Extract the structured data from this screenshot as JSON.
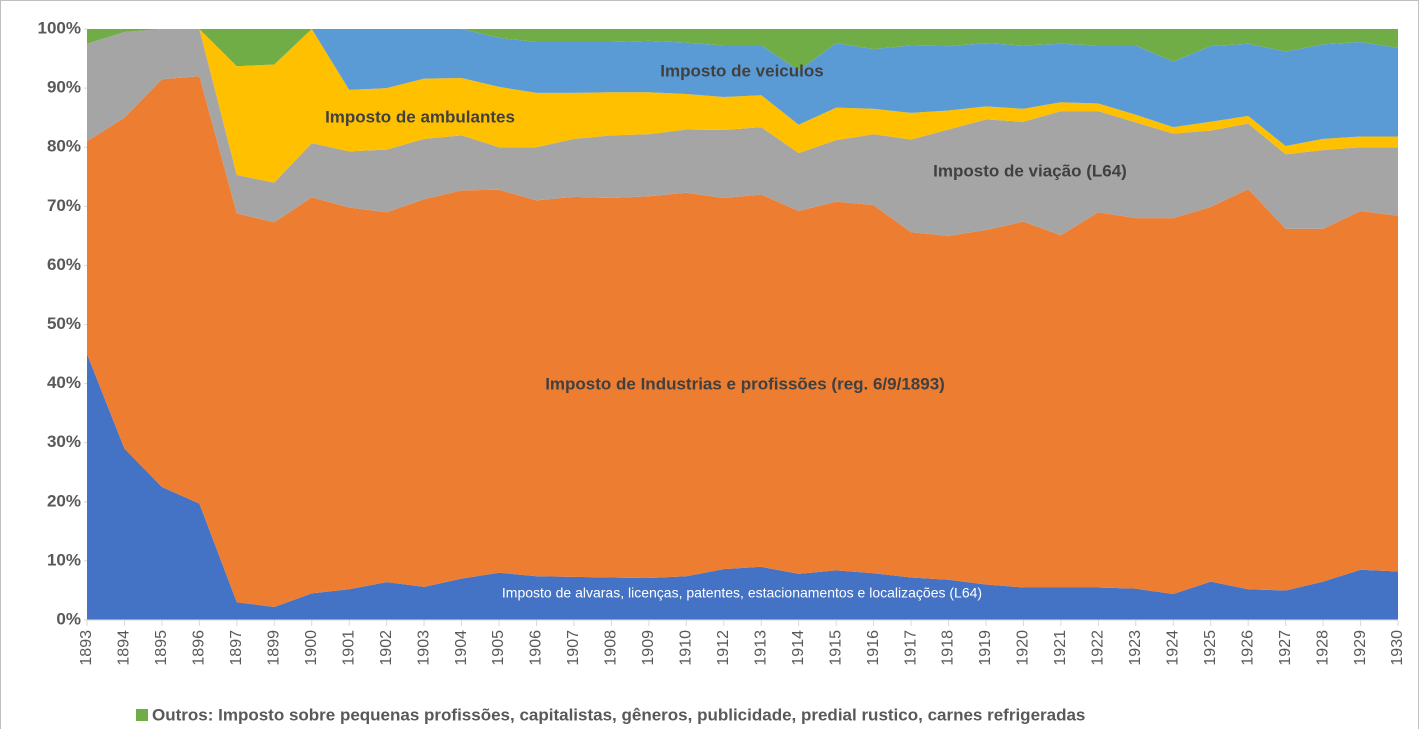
{
  "chart_data": {
    "type": "stacked_area_percent",
    "categories": [
      "1893",
      "1894",
      "1895",
      "1896",
      "1897",
      "1899",
      "1900",
      "1901",
      "1902",
      "1903",
      "1904",
      "1905",
      "1906",
      "1907",
      "1908",
      "1909",
      "1910",
      "1912",
      "1913",
      "1914",
      "1915",
      "1916",
      "1917",
      "1918",
      "1919",
      "1920",
      "1921",
      "1922",
      "1923",
      "1924",
      "1925",
      "1926",
      "1927",
      "1928",
      "1929",
      "1930"
    ],
    "series": [
      {
        "name": "Imposto de alvaras, licenças, patentes, estacionamentos e localizações (L64)",
        "color": "#4472c4",
        "values": [
          45,
          29,
          22.5,
          19.7,
          3,
          2.2,
          4.5,
          5.2,
          6.4,
          5.6,
          7,
          8,
          7.4,
          7.3,
          7.2,
          7.1,
          7.4,
          8.6,
          9,
          7.8,
          8.4,
          7.9,
          7.2,
          6.8,
          6,
          5.5,
          5.5,
          5.5,
          5.3,
          4.4,
          6.5,
          5.2,
          5,
          6.5,
          8.5,
          8.2
        ]
      },
      {
        "name": "Imposto de Industrias e profissões (reg. 6/9/1893)",
        "color": "#ed7d31",
        "values": [
          36,
          56,
          69,
          72.3,
          65.8,
          65.1,
          67,
          64.6,
          62.6,
          65.6,
          65.7,
          64.8,
          63.6,
          64.3,
          64.2,
          64.6,
          64.9,
          62.8,
          63,
          61.4,
          62.4,
          62.3,
          58.4,
          58.2,
          60,
          61.9,
          59.6,
          63.5,
          62.7,
          63.6,
          63.4,
          67.7,
          61.2,
          59.7,
          60.7,
          60.2
        ]
      },
      {
        "name": "Imposto de viação (L64)",
        "color": "#a5a5a5",
        "values": [
          16.5,
          14.5,
          8.5,
          8,
          6.5,
          6.7,
          9.2,
          9.5,
          10.6,
          10.2,
          9.3,
          7.2,
          9,
          9.8,
          10.6,
          10.5,
          10.7,
          11.5,
          11.4,
          9.8,
          10.4,
          12,
          15.7,
          18,
          18.7,
          16.9,
          21,
          17.1,
          16.2,
          14.3,
          12.9,
          11.1,
          12.6,
          13.3,
          10.8,
          11.6
        ]
      },
      {
        "name": "Imposto de ambulantes",
        "color": "#ffc000",
        "values": [
          0,
          0,
          0,
          0,
          18.4,
          20,
          19.3,
          10.4,
          10.4,
          10.2,
          9.7,
          10.2,
          9.2,
          7.8,
          7.3,
          7.1,
          6,
          5.6,
          5.4,
          4.8,
          5.5,
          4.3,
          4.5,
          3.2,
          2.2,
          2.2,
          1.5,
          1.3,
          1.3,
          1.1,
          1.5,
          1.3,
          1.4,
          1.9,
          1.8,
          1.8
        ]
      },
      {
        "name": "Imposto de veiculos",
        "color": "#5b9bd5",
        "values": [
          0,
          0,
          0,
          0,
          0,
          0,
          0,
          10.3,
          10,
          8.4,
          8.3,
          8.3,
          8.6,
          8.6,
          8.5,
          8.7,
          8.7,
          8.7,
          8.4,
          9.2,
          10.9,
          10.1,
          11.4,
          10.9,
          10.7,
          10.7,
          9.9,
          9.8,
          11.7,
          11.1,
          12.8,
          12.2,
          16,
          16,
          16,
          15
        ]
      },
      {
        "name": "Outros: Imposto sobre pequenas profissões, capitalistas, gêneros, publicidade, predial rustico, carnes refrigeradas",
        "color": "#70ad47",
        "values": [
          2.5,
          0.5,
          0,
          0,
          6.3,
          6,
          0,
          0,
          0,
          0,
          0,
          1.5,
          2.2,
          2.2,
          2.2,
          2,
          2.3,
          2.8,
          2.8,
          7,
          2.4,
          3.4,
          2.8,
          2.9,
          2.4,
          2.8,
          2.5,
          2.8,
          2.8,
          5.5,
          2.9,
          2.5,
          3.8,
          2.6,
          2.2,
          3.2
        ]
      }
    ],
    "ylim": [
      0,
      100
    ],
    "yticks": [
      {
        "value": 0,
        "label": "0%"
      },
      {
        "value": 10,
        "label": "10%"
      },
      {
        "value": 20,
        "label": "20%"
      },
      {
        "value": 30,
        "label": "30%"
      },
      {
        "value": 40,
        "label": "40%"
      },
      {
        "value": 50,
        "label": "50%"
      },
      {
        "value": 60,
        "label": "60%"
      },
      {
        "value": 70,
        "label": "70%"
      },
      {
        "value": 80,
        "label": "80%"
      },
      {
        "value": 90,
        "label": "90%"
      },
      {
        "value": 100,
        "label": "100%"
      }
    ],
    "legend": "bottom"
  }
}
